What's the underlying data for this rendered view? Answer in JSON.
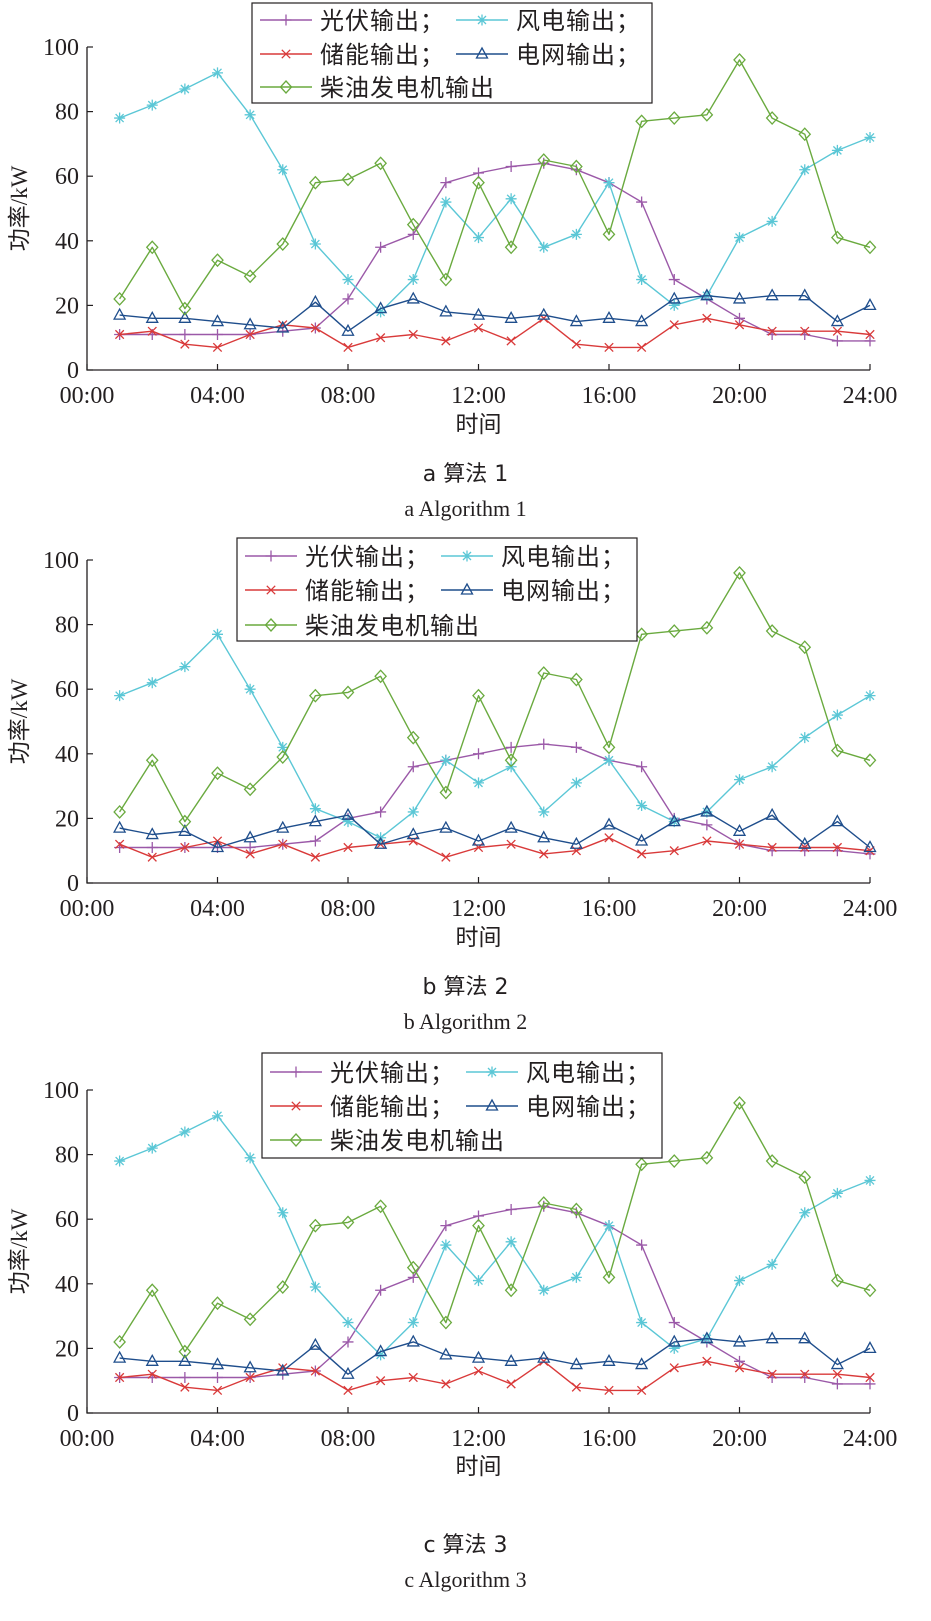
{
  "chart_data": [
    {
      "type": "line",
      "caption_zh": "a 算法 1",
      "caption_en": "a Algorithm 1",
      "xlabel": "时间",
      "ylabel": "功率/kW",
      "ylim": [
        0,
        100
      ],
      "xlim": [
        0,
        24
      ],
      "x_ticks": [
        "00:00",
        "04:00",
        "08:00",
        "12:00",
        "16:00",
        "20:00",
        "24:00"
      ],
      "y_ticks": [
        "0",
        "20",
        "40",
        "60",
        "80",
        "100"
      ],
      "legend_position": "top",
      "x": [
        1,
        2,
        3,
        4,
        5,
        6,
        7,
        8,
        9,
        10,
        11,
        12,
        13,
        14,
        15,
        16,
        17,
        18,
        19,
        20,
        21,
        22,
        23,
        24
      ],
      "series": [
        {
          "name": "光伏输出；",
          "color": "#9b59a8",
          "marker": "plus",
          "values": [
            11,
            11,
            11,
            11,
            11,
            12,
            13,
            22,
            38,
            42,
            58,
            61,
            63,
            64,
            62,
            58,
            52,
            28,
            22,
            16,
            11,
            11,
            9,
            9
          ]
        },
        {
          "name": "风电输出；",
          "color": "#5bc7d6",
          "marker": "asterisk",
          "values": [
            78,
            82,
            87,
            92,
            79,
            62,
            39,
            28,
            18,
            28,
            52,
            41,
            53,
            38,
            42,
            58,
            28,
            20,
            23,
            41,
            46,
            62,
            68,
            72
          ]
        },
        {
          "name": "储能输出；",
          "color": "#d93a3a",
          "marker": "x",
          "values": [
            11,
            12,
            8,
            7,
            11,
            14,
            13,
            7,
            10,
            11,
            9,
            13,
            9,
            16,
            8,
            7,
            7,
            14,
            16,
            14,
            12,
            12,
            12,
            11
          ]
        },
        {
          "name": "电网输出；",
          "color": "#1f4e8c",
          "marker": "triangle",
          "values": [
            17,
            16,
            16,
            15,
            14,
            13,
            21,
            12,
            19,
            22,
            18,
            17,
            16,
            17,
            15,
            16,
            15,
            22,
            23,
            22,
            23,
            23,
            15,
            20
          ]
        },
        {
          "name": "柴油发电机输出",
          "color": "#6aaa3f",
          "marker": "diamond",
          "values": [
            22,
            38,
            19,
            34,
            29,
            39,
            58,
            59,
            64,
            45,
            28,
            58,
            38,
            65,
            63,
            42,
            77,
            78,
            79,
            96,
            78,
            73,
            41,
            38
          ]
        }
      ]
    },
    {
      "type": "line",
      "caption_zh": "b 算法 2",
      "caption_en": "b Algorithm 2",
      "xlabel": "时间",
      "ylabel": "功率/kW",
      "ylim": [
        0,
        100
      ],
      "xlim": [
        0,
        24
      ],
      "x_ticks": [
        "00:00",
        "04:00",
        "08:00",
        "12:00",
        "16:00",
        "20:00",
        "24:00"
      ],
      "y_ticks": [
        "0",
        "20",
        "40",
        "60",
        "80",
        "100"
      ],
      "legend_position": "top",
      "x": [
        1,
        2,
        3,
        4,
        5,
        6,
        7,
        8,
        9,
        10,
        11,
        12,
        13,
        14,
        15,
        16,
        17,
        18,
        19,
        20,
        21,
        22,
        23,
        24
      ],
      "series": [
        {
          "name": "光伏输出；",
          "color": "#9b59a8",
          "marker": "plus",
          "values": [
            11,
            11,
            11,
            11,
            11,
            12,
            13,
            20,
            22,
            36,
            38,
            40,
            42,
            43,
            42,
            38,
            36,
            20,
            18,
            12,
            10,
            10,
            10,
            9
          ]
        },
        {
          "name": "风电输出；",
          "color": "#5bc7d6",
          "marker": "asterisk",
          "values": [
            58,
            62,
            67,
            77,
            60,
            42,
            23,
            19,
            14,
            22,
            38,
            31,
            36,
            22,
            31,
            38,
            24,
            19,
            22,
            32,
            36,
            45,
            52,
            58
          ]
        },
        {
          "name": "储能输出；",
          "color": "#d93a3a",
          "marker": "x",
          "values": [
            12,
            8,
            11,
            13,
            9,
            12,
            8,
            11,
            12,
            13,
            8,
            11,
            12,
            9,
            10,
            14,
            9,
            10,
            13,
            12,
            11,
            11,
            11,
            10
          ]
        },
        {
          "name": "电网输出；",
          "color": "#1f4e8c",
          "marker": "triangle",
          "values": [
            17,
            15,
            16,
            11,
            14,
            17,
            19,
            21,
            12,
            15,
            17,
            13,
            17,
            14,
            12,
            18,
            13,
            19,
            22,
            16,
            21,
            12,
            19,
            11
          ]
        },
        {
          "name": "柴油发电机输出",
          "color": "#6aaa3f",
          "marker": "diamond",
          "values": [
            22,
            38,
            19,
            34,
            29,
            39,
            58,
            59,
            64,
            45,
            28,
            58,
            38,
            65,
            63,
            42,
            77,
            78,
            79,
            96,
            78,
            73,
            41,
            38
          ]
        }
      ]
    },
    {
      "type": "line",
      "caption_zh": "c 算法 3",
      "caption_en": "c Algorithm 3",
      "xlabel": "时间",
      "ylabel": "功率/kW",
      "ylim": [
        0,
        100
      ],
      "xlim": [
        0,
        24
      ],
      "x_ticks": [
        "00:00",
        "04:00",
        "08:00",
        "12:00",
        "16:00",
        "20:00",
        "24:00"
      ],
      "y_ticks": [
        "0",
        "20",
        "40",
        "60",
        "80",
        "100"
      ],
      "legend_position": "top",
      "x": [
        1,
        2,
        3,
        4,
        5,
        6,
        7,
        8,
        9,
        10,
        11,
        12,
        13,
        14,
        15,
        16,
        17,
        18,
        19,
        20,
        21,
        22,
        23,
        24
      ],
      "series": [
        {
          "name": "光伏输出；",
          "color": "#9b59a8",
          "marker": "plus",
          "values": [
            11,
            11,
            11,
            11,
            11,
            12,
            13,
            22,
            38,
            42,
            58,
            61,
            63,
            64,
            62,
            58,
            52,
            28,
            22,
            16,
            11,
            11,
            9,
            9
          ]
        },
        {
          "name": "风电输出；",
          "color": "#5bc7d6",
          "marker": "asterisk",
          "values": [
            78,
            82,
            87,
            92,
            79,
            62,
            39,
            28,
            18,
            28,
            52,
            41,
            53,
            38,
            42,
            58,
            28,
            20,
            23,
            41,
            46,
            62,
            68,
            72
          ]
        },
        {
          "name": "储能输出；",
          "color": "#d93a3a",
          "marker": "x",
          "values": [
            11,
            12,
            8,
            7,
            11,
            14,
            13,
            7,
            10,
            11,
            9,
            13,
            9,
            16,
            8,
            7,
            7,
            14,
            16,
            14,
            12,
            12,
            12,
            11
          ]
        },
        {
          "name": "电网输出；",
          "color": "#1f4e8c",
          "marker": "triangle",
          "values": [
            17,
            16,
            16,
            15,
            14,
            13,
            21,
            12,
            19,
            22,
            18,
            17,
            16,
            17,
            15,
            16,
            15,
            22,
            23,
            22,
            23,
            23,
            15,
            20
          ]
        },
        {
          "name": "柴油发电机输出",
          "color": "#6aaa3f",
          "marker": "diamond",
          "values": [
            22,
            38,
            19,
            34,
            29,
            39,
            58,
            59,
            64,
            45,
            28,
            58,
            38,
            65,
            63,
            42,
            77,
            78,
            79,
            96,
            78,
            73,
            41,
            38
          ]
        }
      ]
    }
  ]
}
